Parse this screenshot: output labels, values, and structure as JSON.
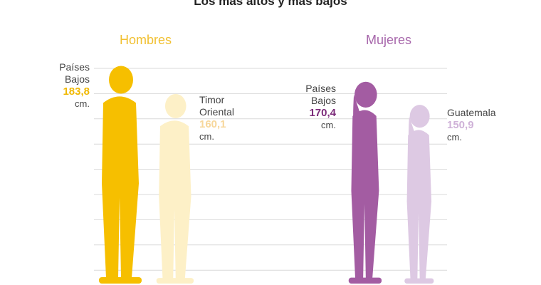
{
  "title": "Los más altos y más bajos",
  "colors": {
    "hombres_tall": "#f6bf00",
    "hombres_short": "#fdf0c7",
    "mujeres_tall": "#a35ca2",
    "mujeres_short": "#ddc9e3",
    "hombres_label": "#f1c031",
    "mujeres_label": "#a767ab",
    "value_hombres_tall": "#f0b800",
    "value_hombres_short": "#f7d79b",
    "value_mujeres_tall": "#7c2c7a",
    "value_mujeres_short": "#cfb2d8",
    "grid": "#d9d9d9"
  },
  "groups": {
    "hombres": "Hombres",
    "mujeres": "Mujeres"
  },
  "chart_data": {
    "type": "bar",
    "title": "Los más altos y más bajos",
    "unit": "cm.",
    "series": [
      {
        "name": "Hombres",
        "categories": [
          "Países Bajos",
          "Timor Oriental"
        ],
        "values": [
          183.8,
          160.1
        ],
        "value_labels": [
          "183,8",
          "160,1"
        ]
      },
      {
        "name": "Mujeres",
        "categories": [
          "Países Bajos",
          "Guatemala"
        ],
        "values": [
          170.4,
          150.9
        ],
        "value_labels": [
          "170,4",
          "150,9"
        ]
      }
    ]
  },
  "labels": {
    "h_tall": {
      "line1": "Países",
      "line2": "Bajos",
      "value": "183,8",
      "unit": "cm."
    },
    "h_short": {
      "line1": "Timor",
      "line2": "Oriental",
      "value": "160,1",
      "unit": "cm."
    },
    "m_tall": {
      "line1": "Países",
      "line2": "Bajos",
      "value": "170,4",
      "unit": "cm."
    },
    "m_short": {
      "line1": "Guatemala",
      "value": "150,9",
      "unit": "cm."
    }
  }
}
